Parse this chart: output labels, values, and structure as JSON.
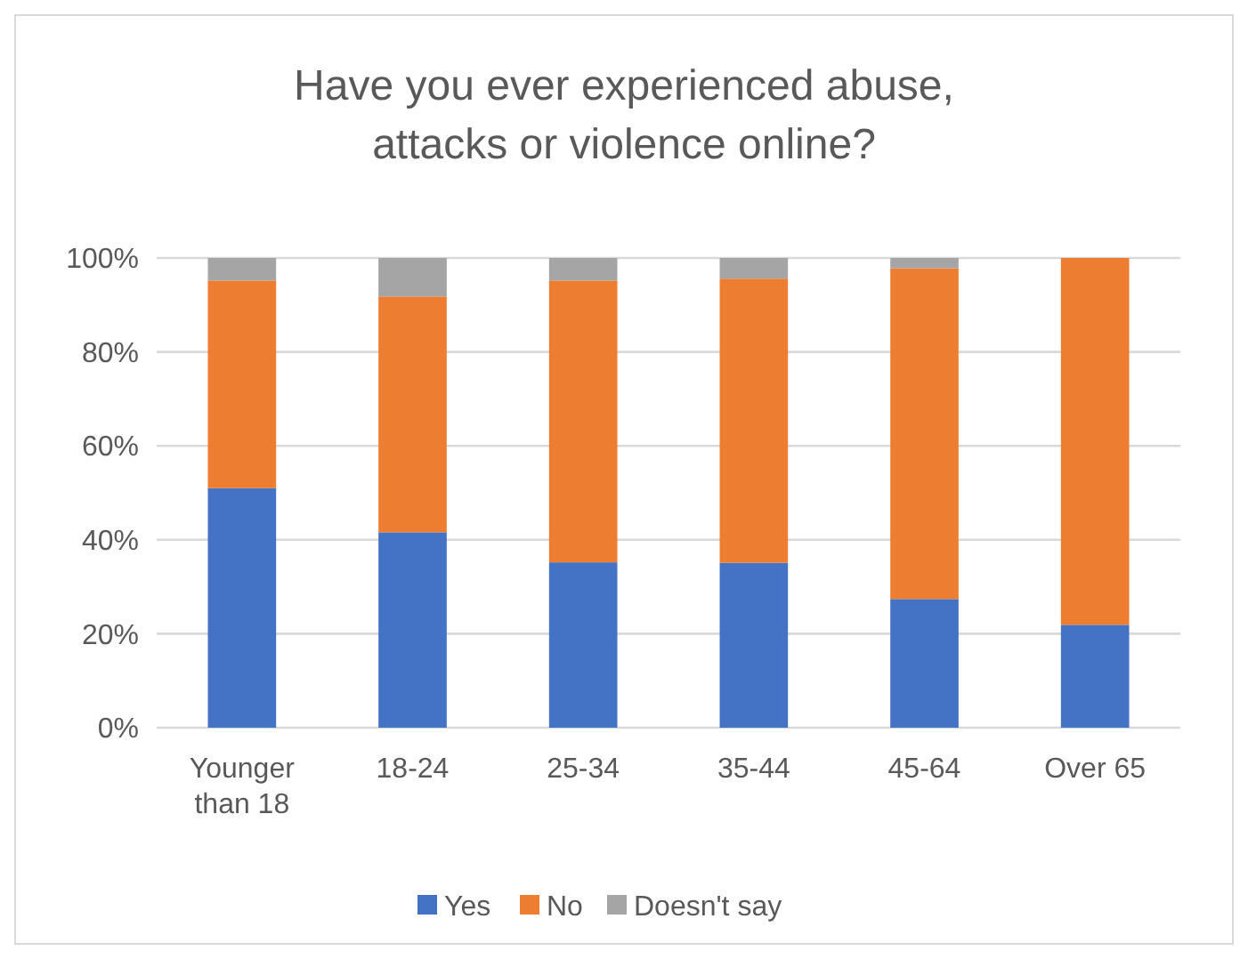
{
  "chart_data": {
    "type": "bar",
    "stacked": true,
    "title": "Have you ever experienced abuse, attacks or violence online?",
    "categories": [
      "Younger than 18",
      "18-24",
      "25-34",
      "35-44",
      "45-64",
      "Over 65"
    ],
    "series": [
      {
        "name": "Yes",
        "color": "#4472c4",
        "values": [
          51.0,
          41.6,
          35.2,
          35.1,
          27.4,
          21.9
        ]
      },
      {
        "name": "No",
        "color": "#ed7d31",
        "values": [
          44.2,
          50.2,
          60.0,
          60.5,
          70.4,
          78.1
        ]
      },
      {
        "name": "Doesn't say",
        "color": "#a5a5a5",
        "values": [
          4.8,
          8.2,
          4.8,
          4.4,
          2.2,
          0
        ]
      }
    ],
    "ylim": [
      0,
      100
    ],
    "yticks": [
      {
        "value": 0,
        "label": "0%"
      },
      {
        "value": 20,
        "label": "20%"
      },
      {
        "value": 40,
        "label": "40%"
      },
      {
        "value": 60,
        "label": "60%"
      },
      {
        "value": 80,
        "label": "80%"
      },
      {
        "value": 100,
        "label": "100%"
      }
    ],
    "grid": "y",
    "legend": "bottom"
  }
}
